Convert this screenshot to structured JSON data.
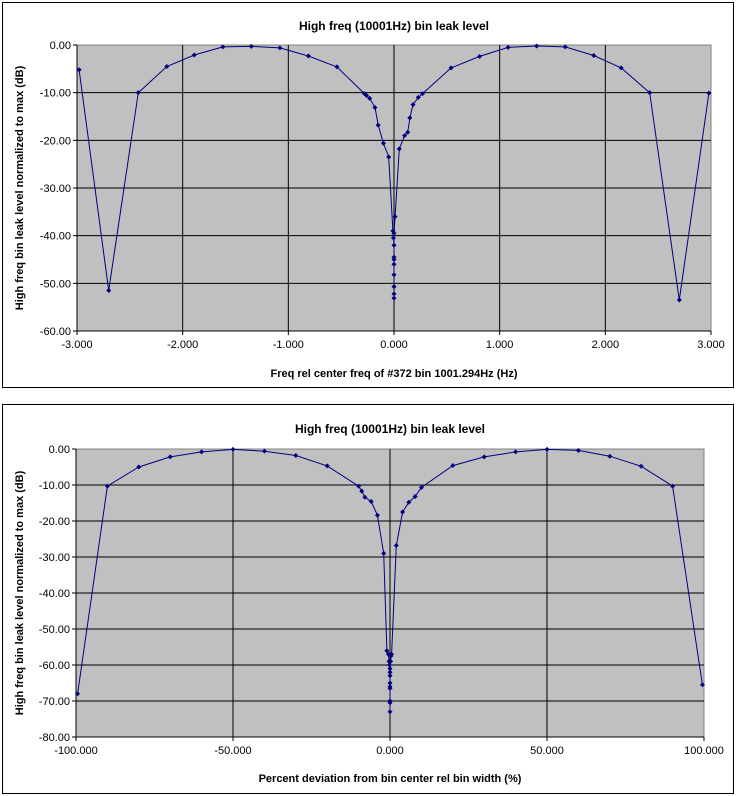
{
  "chart_data": [
    {
      "type": "line",
      "title": "High freq (10001Hz) bin leak level",
      "xlabel": "Freq rel center freq of #372 bin 1001.294Hz (Hz)",
      "ylabel": "High freq bin leak level normalized to max (dB)",
      "xlim": [
        -3,
        3
      ],
      "ylim": [
        -60,
        0
      ],
      "x_ticks": [
        "-3.000",
        "-2.000",
        "-1.000",
        "0.000",
        "1.000",
        "2.000",
        "3.000"
      ],
      "y_ticks": [
        "0.00",
        "-10.00",
        "-20.00",
        "-30.00",
        "-40.00",
        "-50.00",
        "-60.00"
      ],
      "grid": true,
      "plot_bg": "#c0c0c0",
      "line_color": "#000080",
      "x": [
        -2.98,
        -2.7,
        -2.42,
        -2.15,
        -1.89,
        -1.62,
        -1.35,
        -1.08,
        -0.81,
        -0.54,
        -0.28,
        -0.26,
        -0.23,
        -0.18,
        -0.15,
        -0.1,
        -0.05,
        -0.01,
        -0.005,
        0.0,
        0.0,
        0.0,
        0.0,
        0.0,
        0.0,
        0.0,
        0.0,
        0.0,
        0.01,
        0.05,
        0.1,
        0.13,
        0.15,
        0.18,
        0.23,
        0.27,
        0.54,
        0.81,
        1.08,
        1.35,
        1.62,
        1.89,
        2.15,
        2.42,
        2.7,
        2.98
      ],
      "y": [
        -5.2,
        -51.5,
        -10.0,
        -4.5,
        -2.1,
        -0.4,
        -0.3,
        -0.6,
        -2.3,
        -4.6,
        -10.2,
        -10.6,
        -11.2,
        -13.1,
        -16.8,
        -20.6,
        -23.5,
        -39.0,
        -40.5,
        -42.0,
        -44.5,
        -46.0,
        -48.2,
        -50.7,
        -52.2,
        -53.1,
        -45.0,
        -39.5,
        -36.0,
        -21.8,
        -19.0,
        -18.3,
        -15.3,
        -12.5,
        -11.0,
        -10.2,
        -4.8,
        -2.4,
        -0.5,
        -0.2,
        -0.4,
        -2.2,
        -4.8,
        -10.0,
        -53.5,
        -10.1
      ]
    },
    {
      "type": "line",
      "title": "High freq (10001Hz) bin leak level",
      "xlabel": "Percent deviation from bin center rel bin width (%)",
      "ylabel": "High freq bin leak level normalized to max (dB)",
      "xlim": [
        -100,
        100
      ],
      "ylim": [
        -80,
        0
      ],
      "x_ticks": [
        "-100.000",
        "-50.000",
        "0.000",
        "50.000",
        "100.000"
      ],
      "y_ticks": [
        "0.00",
        "-10.00",
        "-20.00",
        "-30.00",
        "-40.00",
        "-50.00",
        "-60.00",
        "-70.00",
        "-80.00"
      ],
      "grid": true,
      "plot_bg": "#c0c0c0",
      "line_color": "#000080",
      "x": [
        -99.5,
        -90,
        -80,
        -70,
        -60,
        -50,
        -40,
        -30,
        -20,
        -10,
        -9,
        -8,
        -6,
        -4,
        -2,
        -1,
        -0.5,
        -0.3,
        -0.2,
        0,
        0,
        0,
        0,
        0,
        0,
        0,
        0,
        0,
        0.2,
        0.3,
        0.5,
        2,
        4,
        6,
        8,
        10,
        20,
        30,
        40,
        50,
        60,
        70,
        80,
        90,
        99.5
      ],
      "y": [
        -68.0,
        -10.3,
        -5.0,
        -2.2,
        -0.8,
        -0.1,
        -0.6,
        -1.8,
        -4.7,
        -10.3,
        -11.7,
        -13.4,
        -14.6,
        -18.4,
        -29.0,
        -56.0,
        -57.0,
        -59.0,
        -60.0,
        -61.0,
        -63.0,
        -65.0,
        -66.5,
        -70.5,
        -73.0,
        -70.0,
        -66.0,
        -62.0,
        -59.0,
        -57.5,
        -57.0,
        -26.8,
        -17.5,
        -14.8,
        -13.2,
        -10.7,
        -4.6,
        -2.2,
        -0.8,
        -0.1,
        -0.4,
        -2.0,
        -4.8,
        -10.3,
        -65.5
      ]
    }
  ]
}
